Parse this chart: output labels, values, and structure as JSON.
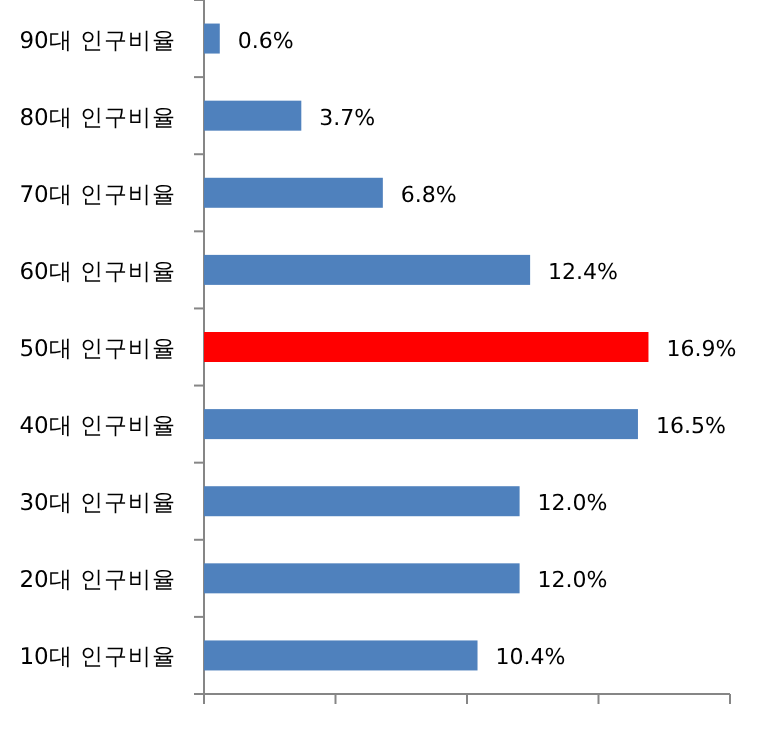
{
  "chart_data": {
    "type": "bar",
    "orientation": "horizontal",
    "categories": [
      "90대 인구비율",
      "80대 인구비율",
      "70대 인구비율",
      "60대 인구비율",
      "50대 인구비율",
      "40대 인구비율",
      "30대 인구비율",
      "20대 인구비율",
      "10대 인구비율"
    ],
    "values": [
      0.6,
      3.7,
      6.8,
      12.4,
      16.9,
      16.5,
      12.0,
      12.0,
      10.4
    ],
    "value_labels": [
      "0.6%",
      "3.7%",
      "6.8%",
      "12.4%",
      "16.9%",
      "16.5%",
      "12.0%",
      "12.0%",
      "10.4%"
    ],
    "colors": [
      "#4f81bd",
      "#4f81bd",
      "#4f81bd",
      "#4f81bd",
      "#ff0000",
      "#4f81bd",
      "#4f81bd",
      "#4f81bd",
      "#4f81bd"
    ],
    "xlim": [
      0,
      20
    ],
    "xticks": [
      {
        "value": 0,
        "label": null
      },
      {
        "value": 5,
        "label": null
      },
      {
        "value": 10,
        "label": null
      },
      {
        "value": 15,
        "label": null
      },
      {
        "value": 20,
        "label": null
      }
    ],
    "tick_labels": "y"
  }
}
